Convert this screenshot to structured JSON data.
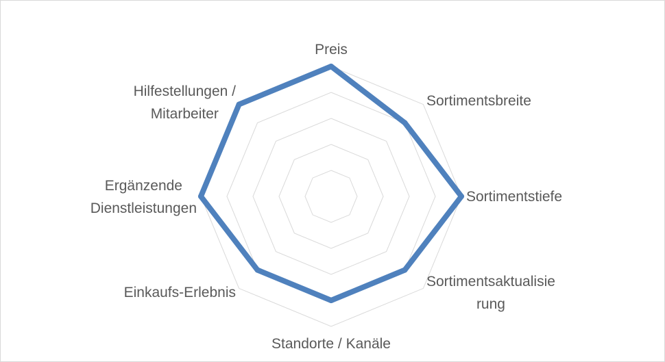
{
  "chart_data": {
    "type": "radar",
    "categories": [
      [
        "Preis"
      ],
      [
        "Sortimentsbreite"
      ],
      [
        "Sortimentstiefe"
      ],
      [
        "Sortimentsaktualisie",
        "rung"
      ],
      [
        "Standorte / Kanäle"
      ],
      [
        "Einkaufs-Erlebnis"
      ],
      [
        "Ergänzende",
        "Dienstleistungen"
      ],
      [
        "Hilfestellungen /",
        "Mitarbeiter"
      ]
    ],
    "series": [
      {
        "values": [
          5,
          4,
          5,
          4,
          4,
          4,
          5,
          5
        ],
        "color": "#4f81bd"
      }
    ],
    "rlim": [
      0,
      5
    ],
    "rings": 5,
    "grid": true,
    "grid_color": "#d9d9d9",
    "legend": "none"
  }
}
